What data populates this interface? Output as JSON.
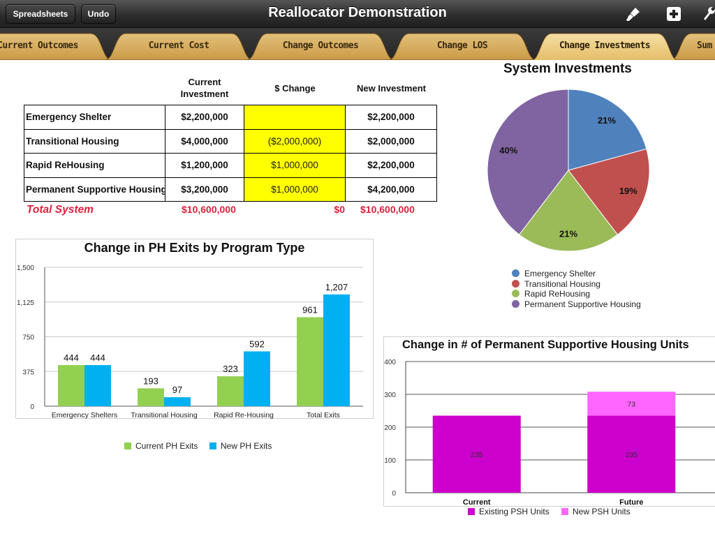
{
  "toolbar": {
    "spreadsheets_label": "Spreadsheets",
    "undo_label": "Undo",
    "title": "Reallocator Demonstration",
    "icons": [
      "paintbrush-icon",
      "add-icon",
      "wrench-icon"
    ]
  },
  "tabs": [
    {
      "label": "Current Outcomes",
      "active": false
    },
    {
      "label": "Current Cost",
      "active": false
    },
    {
      "label": "Change Outcomes",
      "active": false
    },
    {
      "label": "Change LOS",
      "active": false
    },
    {
      "label": "Change Investments",
      "active": true
    },
    {
      "label": "Sum",
      "active": false
    }
  ],
  "investments": {
    "headers": {
      "current": "Current Investment",
      "change": "$ Change",
      "new": "New Investment"
    },
    "rows": [
      {
        "program": "Emergency Shelter",
        "current": "$2,200,000",
        "change": "",
        "new": "$2,200,000"
      },
      {
        "program": "Transitional Housing",
        "current": "$4,000,000",
        "change": "($2,000,000)",
        "new": "$2,000,000"
      },
      {
        "program": "Rapid ReHousing",
        "current": "$1,200,000",
        "change": "$1,000,000",
        "new": "$2,200,000"
      },
      {
        "program": "Permanent Supportive Housing",
        "current": "$3,200,000",
        "change": "$1,000,000",
        "new": "$4,200,000"
      }
    ],
    "total": {
      "label": "Total System",
      "current": "$10,600,000",
      "change": "$0",
      "new": "$10,600,000"
    },
    "highlight_color": "#ffff00",
    "total_color": "#e0203c"
  },
  "chart_data": [
    {
      "type": "pie",
      "title": "System Investments",
      "labels": [
        "Emergency Shelter",
        "Transitional Housing",
        "Rapid ReHousing",
        "Permanent Supportive Housing"
      ],
      "values": [
        2200000,
        2000000,
        2200000,
        4200000
      ],
      "data_labels": [
        "21%",
        "19%",
        "21%",
        "40%"
      ],
      "colors": [
        "#4f81bd",
        "#c0504d",
        "#9bbb59",
        "#8064a2"
      ],
      "legend": "bottom"
    },
    {
      "type": "bar",
      "title": "Change in PH Exits by Program Type",
      "categories": [
        "Emergency Shelters",
        "Transitional Housing",
        "Rapid Re-Housing",
        "Total Exits"
      ],
      "series": [
        {
          "name": "Current PH Exits",
          "values": [
            444,
            193,
            323,
            961
          ],
          "color": "#92d050"
        },
        {
          "name": "New PH Exits",
          "values": [
            444,
            97,
            592,
            1207
          ],
          "color": "#00b0f0"
        }
      ],
      "data_labels": [
        [
          "444",
          "193",
          "323",
          "961"
        ],
        [
          "444",
          "97",
          "592",
          "1,207"
        ]
      ],
      "yticks": [
        "0",
        "375",
        "750",
        "1,125",
        "1,500"
      ],
      "ylim": [
        0,
        1500
      ],
      "legend": "bottom"
    },
    {
      "type": "bar",
      "stacked": true,
      "title": "Change in # of Permanent Supportive Housing Units",
      "categories": [
        "Current",
        "Future"
      ],
      "series": [
        {
          "name": "Existing PSH Units",
          "values": [
            235,
            235
          ],
          "color": "#cc00cc"
        },
        {
          "name": "New PSH Units",
          "values": [
            0,
            73
          ],
          "color": "#ff66ff"
        }
      ],
      "data_labels": [
        [
          "235",
          "235"
        ],
        [
          "",
          "73"
        ]
      ],
      "yticks": [
        "0",
        "100",
        "200",
        "300",
        "400"
      ],
      "ylim": [
        0,
        400
      ],
      "legend": "bottom"
    }
  ]
}
